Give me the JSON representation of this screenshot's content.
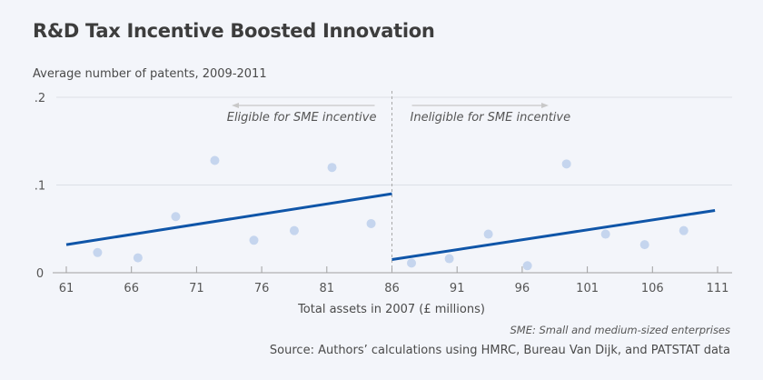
{
  "chart_data": {
    "type": "scatter",
    "title": "R&D Tax Incentive Boosted Innovation",
    "ylabel": "Average number of patents, 2009-2011",
    "xlabel": "Total assets in 2007 (£ millions)",
    "xlim": [
      61,
      111
    ],
    "ylim": [
      0,
      0.2
    ],
    "xticks": [
      61,
      66,
      71,
      76,
      81,
      86,
      91,
      96,
      101,
      106,
      111
    ],
    "xtick_labels": [
      "61",
      "66",
      "71",
      "76",
      "81",
      "86",
      "91",
      "96",
      "101",
      "106",
      "111"
    ],
    "yticks": [
      0,
      0.1,
      0.2
    ],
    "ytick_labels": [
      "0",
      ".1",
      ".2"
    ],
    "grid": "horizontal",
    "threshold": 86,
    "annotations": {
      "left": "Eligible for SME incentive",
      "right": "Ineligible for SME incentive"
    },
    "series": [
      {
        "name": "Eligible",
        "points": [
          {
            "x": 63.4,
            "y": 0.023
          },
          {
            "x": 66.5,
            "y": 0.017
          },
          {
            "x": 69.4,
            "y": 0.064
          },
          {
            "x": 72.4,
            "y": 0.128
          },
          {
            "x": 75.4,
            "y": 0.037
          },
          {
            "x": 78.5,
            "y": 0.048
          },
          {
            "x": 81.4,
            "y": 0.12
          },
          {
            "x": 84.4,
            "y": 0.056
          }
        ],
        "fit": {
          "x": [
            61,
            86
          ],
          "y": [
            0.032,
            0.09
          ]
        }
      },
      {
        "name": "Ineligible",
        "points": [
          {
            "x": 87.5,
            "y": 0.011
          },
          {
            "x": 90.4,
            "y": 0.016
          },
          {
            "x": 93.4,
            "y": 0.044
          },
          {
            "x": 96.4,
            "y": 0.008
          },
          {
            "x": 99.4,
            "y": 0.124
          },
          {
            "x": 102.4,
            "y": 0.044
          },
          {
            "x": 105.4,
            "y": 0.032
          },
          {
            "x": 108.4,
            "y": 0.048
          }
        ],
        "fit": {
          "x": [
            86,
            110.8
          ],
          "y": [
            0.015,
            0.071
          ]
        }
      }
    ],
    "colors": {
      "point": "#c5d5ee",
      "line": "#0f55a8",
      "grid": "#dcdfe6",
      "axis": "#a0a0a0",
      "divider": "#a8a8a8",
      "arrow": "#c8c8c8"
    }
  },
  "footer": {
    "note": "SME: Small and medium-sized enterprises",
    "source": "Source: Authors’ calculations using HMRC, Bureau Van Dijk, and PATSTAT data"
  }
}
